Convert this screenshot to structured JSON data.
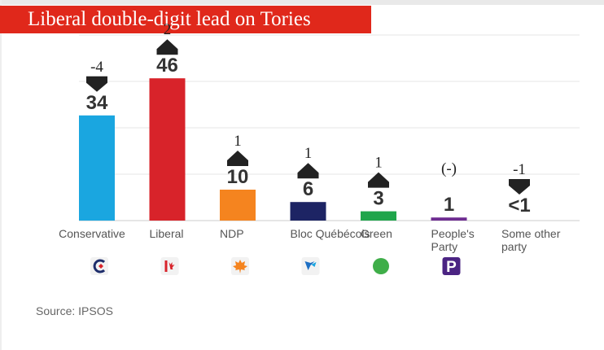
{
  "title": "Liberal double-digit lead on Tories",
  "source": "Source: IPSOS",
  "chart_data": {
    "type": "bar",
    "title": "Liberal double-digit lead on Tories",
    "xlabel": "",
    "ylabel": "",
    "ylim": [
      0,
      60
    ],
    "grid": true,
    "categories": [
      "Conservative",
      "Liberal",
      "NDP",
      "Bloc Québécois",
      "Green",
      "People's Party",
      "Some other party"
    ],
    "values": [
      34,
      46,
      10,
      6,
      3,
      1,
      0.3
    ],
    "value_labels": [
      "34",
      "46",
      "10",
      "6",
      "3",
      "1",
      "<1"
    ],
    "changes": [
      "-4",
      "2",
      "1",
      "1",
      "1",
      "(-)",
      "-1"
    ],
    "change_direction": [
      "down",
      "up",
      "up",
      "up",
      "up",
      "none",
      "down"
    ],
    "colors": [
      "#1aa6e0",
      "#d8232a",
      "#f5841f",
      "#1d2464",
      "#1fa54b",
      "#6e2c91",
      "#999999"
    ],
    "logo_icons": [
      "conservative-logo-icon",
      "liberal-logo-icon",
      "ndp-logo-icon",
      "bloc-logo-icon",
      "green-logo-icon",
      "ppc-logo-icon",
      ""
    ],
    "logo_colors": [
      "#1aa6e0",
      "#d8232a",
      "#f5841f",
      "#1d6fc4",
      "#3fae49",
      "#4b2483",
      ""
    ]
  }
}
